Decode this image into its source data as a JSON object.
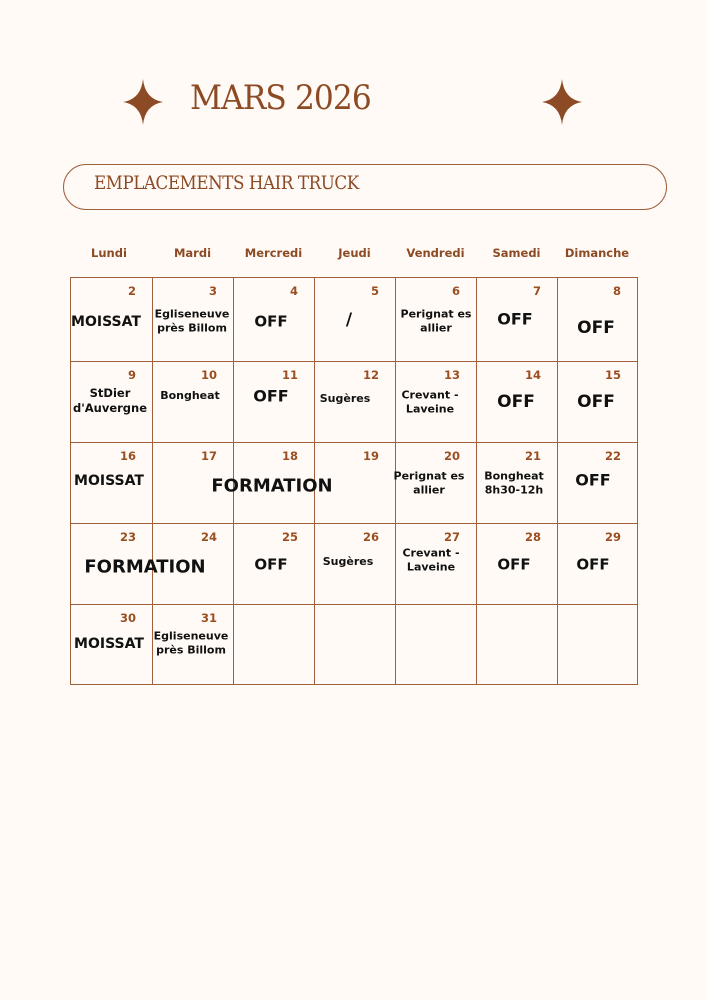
{
  "header": {
    "title": "MARS 2026",
    "subtitle": "EMPLACEMENTS HAIR TRUCK"
  },
  "colors": {
    "accent": "#8c4a25",
    "line": "#a0603d",
    "background": "#fffaf5",
    "text": "#111111"
  },
  "icons": [
    "four-point-star-icon",
    "four-point-star-icon"
  ],
  "weekdays": [
    "Lundi",
    "Mardi",
    "Mercredi",
    "Jeudi",
    "Vendredi",
    "Samedi",
    "Dimanche"
  ],
  "weeks": [
    [
      {
        "day": "2",
        "text": "MOISSAT"
      },
      {
        "day": "3",
        "text": "Egliseneuve\nprès Billom"
      },
      {
        "day": "4",
        "text": "OFF"
      },
      {
        "day": "5",
        "text": "/"
      },
      {
        "day": "6",
        "text": "Perignat es\nallier"
      },
      {
        "day": "7",
        "text": "OFF"
      },
      {
        "day": "8",
        "text": "OFF"
      }
    ],
    [
      {
        "day": "9",
        "text": "StDier\nd'Auvergne"
      },
      {
        "day": "10",
        "text": "Bongheat"
      },
      {
        "day": "11",
        "text": "OFF"
      },
      {
        "day": "12",
        "text": "Sugères"
      },
      {
        "day": "13",
        "text": "Crevant -\nLaveine"
      },
      {
        "day": "14",
        "text": "OFF"
      },
      {
        "day": "15",
        "text": "OFF"
      }
    ],
    [
      {
        "day": "16",
        "text": "MOISSAT"
      },
      {
        "day": "17",
        "text": ""
      },
      {
        "day": "18",
        "text": ""
      },
      {
        "day": "19",
        "text": ""
      },
      {
        "day": "20",
        "text": "Perignat es\nallier"
      },
      {
        "day": "21",
        "text": "Bongheat\n8h30-12h"
      },
      {
        "day": "22",
        "text": "OFF"
      }
    ],
    [
      {
        "day": "23",
        "text": ""
      },
      {
        "day": "24",
        "text": ""
      },
      {
        "day": "25",
        "text": "OFF"
      },
      {
        "day": "26",
        "text": "Sugères"
      },
      {
        "day": "27",
        "text": "Crevant -\nLaveine"
      },
      {
        "day": "28",
        "text": "OFF"
      },
      {
        "day": "29",
        "text": "OFF"
      }
    ],
    [
      {
        "day": "30",
        "text": "MOISSAT"
      },
      {
        "day": "31",
        "text": "Egliseneuve\nprès Billom"
      },
      {
        "day": "",
        "text": ""
      },
      {
        "day": "",
        "text": ""
      },
      {
        "day": "",
        "text": ""
      },
      {
        "day": "",
        "text": ""
      },
      {
        "day": "",
        "text": ""
      }
    ]
  ],
  "spans": [
    {
      "text": "FORMATION",
      "week": 2,
      "days": [
        "17",
        "18",
        "19"
      ]
    },
    {
      "text": "FORMATION",
      "week": 3,
      "days": [
        "23",
        "24"
      ]
    }
  ]
}
